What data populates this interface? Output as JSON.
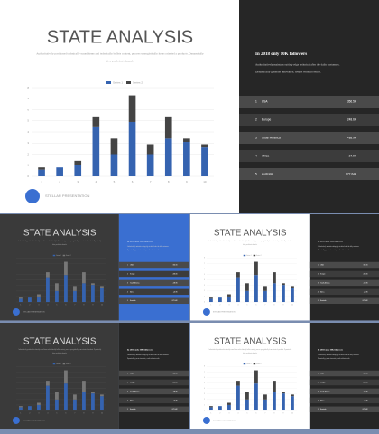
{
  "chart_data": {
    "type": "stacked-bar",
    "categories": [
      "1",
      "2",
      "3",
      "4",
      "5",
      "6",
      "7",
      "8",
      "9",
      "10"
    ],
    "series": [
      {
        "name": "Series 1",
        "color": "#3563b0",
        "values": [
          0.6,
          0.8,
          1.0,
          4.5,
          2.0,
          4.9,
          2.0,
          3.4,
          3.1,
          2.6
        ]
      },
      {
        "name": "Series 2",
        "color": "#444444",
        "values": [
          0.2,
          0.0,
          0.4,
          0.9,
          1.4,
          2.4,
          0.9,
          2.0,
          0.3,
          0.3
        ]
      }
    ],
    "ylim": [
      0,
      8
    ],
    "yticks": [
      0,
      1,
      2,
      3,
      4,
      5,
      6,
      7,
      8
    ],
    "grid": true,
    "legend": "top"
  },
  "slide": {
    "title": "STATE ANALYSIS",
    "subtitle_lines": [
      "Authoritatively positioned technically sound items and technically bullets content, process synergistically items oriented a products. Dynamically",
      "drive proficient channels."
    ],
    "brand": "STELLAR PRESENTATION",
    "panel_heading": "In 2018 only 10K followers",
    "panel_lines": [
      "Authoritatively maintain cutting-edge technical after the daily customers.",
      "Dynamically generate innovative, results without results."
    ],
    "table": [
      [
        "1",
        "USA",
        "356.5K"
      ],
      [
        "2",
        "Europe",
        "248.6K"
      ],
      [
        "3",
        "South America",
        "+88.9K"
      ],
      [
        "4",
        "Africa",
        "-24.9K"
      ],
      [
        "5",
        "Australia",
        "672.64K"
      ]
    ]
  }
}
